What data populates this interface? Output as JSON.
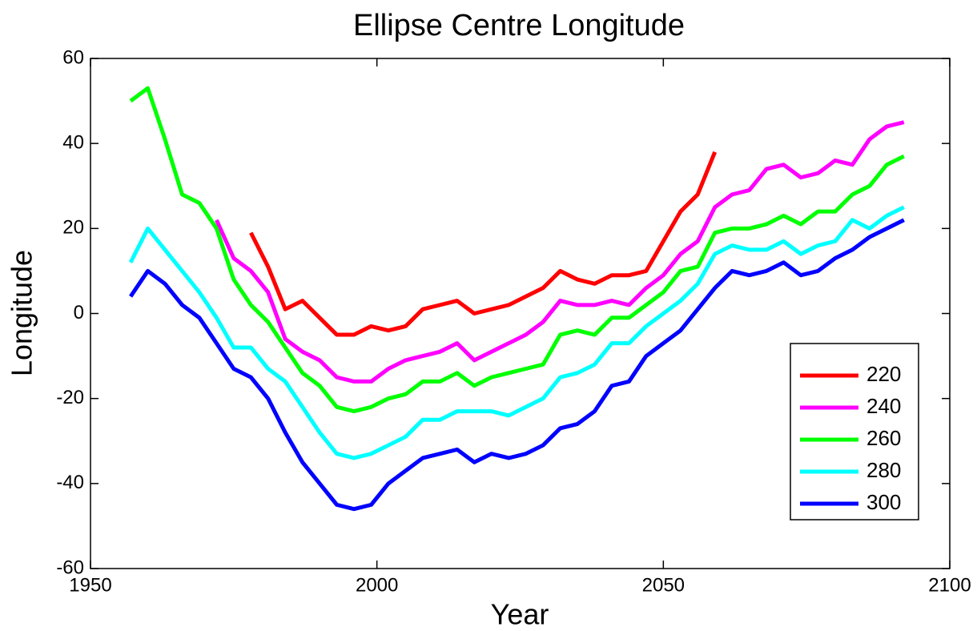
{
  "chart_data": {
    "type": "line",
    "title": "Ellipse Centre Longitude",
    "xlabel": "Year",
    "ylabel": "Longitude",
    "x": [
      1957,
      1960,
      1963,
      1966,
      1969,
      1972,
      1975,
      1978,
      1981,
      1984,
      1987,
      1990,
      1993,
      1996,
      1999,
      2002,
      2005,
      2008,
      2011,
      2014,
      2017,
      2020,
      2023,
      2026,
      2029,
      2032,
      2035,
      2038,
      2041,
      2044,
      2047,
      2050,
      2053,
      2056,
      2059,
      2062,
      2065,
      2068,
      2071,
      2074,
      2077,
      2080,
      2083,
      2086,
      2089,
      2092
    ],
    "series": [
      {
        "name": "220",
        "color": "#ff0000",
        "values": [
          null,
          null,
          null,
          null,
          null,
          null,
          null,
          19,
          11,
          1,
          3,
          -1,
          -5,
          -5,
          -3,
          -4,
          -3,
          1,
          2,
          3,
          0,
          1,
          2,
          4,
          6,
          10,
          8,
          7,
          9,
          9,
          10,
          17,
          24,
          28,
          38,
          null,
          null,
          null,
          null,
          null,
          null,
          null,
          null,
          null,
          null,
          null
        ]
      },
      {
        "name": "240",
        "color": "#ff00ff",
        "values": [
          null,
          null,
          null,
          null,
          null,
          22,
          13,
          10,
          5,
          -6,
          -9,
          -11,
          -15,
          -16,
          -16,
          -13,
          -11,
          -10,
          -9,
          -7,
          -11,
          -9,
          -7,
          -5,
          -2,
          3,
          2,
          2,
          3,
          2,
          6,
          9,
          14,
          17,
          25,
          28,
          29,
          34,
          35,
          32,
          33,
          36,
          35,
          41,
          44,
          45
        ]
      },
      {
        "name": "260",
        "color": "#00ff00",
        "values": [
          50,
          53,
          41,
          28,
          26,
          20,
          8,
          2,
          -2,
          -8,
          -14,
          -17,
          -22,
          -23,
          -22,
          -20,
          -19,
          -16,
          -16,
          -14,
          -17,
          -15,
          -14,
          -13,
          -12,
          -5,
          -4,
          -5,
          -1,
          -1,
          2,
          5,
          10,
          11,
          19,
          20,
          20,
          21,
          23,
          21,
          24,
          24,
          28,
          30,
          35,
          37
        ]
      },
      {
        "name": "280",
        "color": "#00ffff",
        "values": [
          12,
          20,
          15,
          10,
          5,
          -1,
          -8,
          -8,
          -13,
          -16,
          -22,
          -28,
          -33,
          -34,
          -33,
          -31,
          -29,
          -25,
          -25,
          -23,
          -23,
          -23,
          -24,
          -22,
          -20,
          -15,
          -14,
          -12,
          -7,
          -7,
          -3,
          0,
          3,
          7,
          14,
          16,
          15,
          15,
          17,
          14,
          16,
          17,
          22,
          20,
          23,
          25
        ]
      },
      {
        "name": "300",
        "color": "#0000ff",
        "values": [
          4,
          10,
          7,
          2,
          -1,
          -7,
          -13,
          -15,
          -20,
          -28,
          -35,
          -40,
          -45,
          -46,
          -45,
          -40,
          -37,
          -34,
          -33,
          -32,
          -35,
          -33,
          -34,
          -33,
          -31,
          -27,
          -26,
          -23,
          -17,
          -16,
          -10,
          -7,
          -4,
          1,
          6,
          10,
          9,
          10,
          12,
          9,
          10,
          13,
          15,
          18,
          20,
          22
        ]
      }
    ],
    "xlim": [
      1950,
      2100
    ],
    "xticks": [
      1950,
      2000,
      2050,
      2100
    ],
    "ylim": [
      -60,
      60
    ],
    "yticks": [
      -60,
      -40,
      -20,
      0,
      20,
      40,
      60
    ],
    "legend": "lower right"
  }
}
